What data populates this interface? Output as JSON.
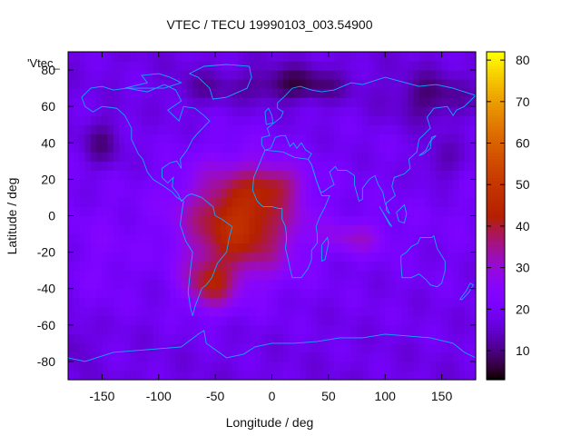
{
  "chart_data": {
    "type": "heatmap",
    "title": "VTEC / TECU 19990103_003.54900",
    "xlabel": "Longitude / deg",
    "ylabel": "Latitude / deg",
    "xlim": [
      -180,
      180
    ],
    "ylim": [
      -90,
      90
    ],
    "x_ticks": [
      -150,
      -100,
      -50,
      0,
      50,
      100,
      150
    ],
    "y_ticks": [
      -80,
      -60,
      -40,
      -20,
      0,
      20,
      40,
      60,
      80
    ],
    "x_tick_labels": [
      "-150",
      "-100",
      "-50",
      "0",
      "50",
      "100",
      "150"
    ],
    "y_tick_labels": [
      "-80",
      "-60",
      "-40",
      "-20",
      "0",
      "20",
      "40",
      "60",
      "80"
    ],
    "legend": "'Vtec_",
    "colorbar": {
      "min": 3,
      "max": 82,
      "ticks": [
        10,
        20,
        30,
        40,
        50,
        60,
        70,
        80
      ],
      "tick_labels": [
        "10",
        "20",
        "30",
        "40",
        "50",
        "60",
        "70",
        "80"
      ]
    },
    "grid_step_deg": 5,
    "features": {
      "background": 20,
      "blobs": [
        {
          "lon": -28,
          "lat": -3,
          "slon": 48,
          "slat": 30,
          "amp": 28
        },
        {
          "lon": -55,
          "lat": -38,
          "slon": 22,
          "slat": 14,
          "amp": 18
        },
        {
          "lon": 5,
          "lat": 18,
          "slon": 24,
          "slat": 10,
          "amp": 10
        },
        {
          "lon": 75,
          "lat": -12,
          "slon": 28,
          "slat": 9,
          "amp": 10
        },
        {
          "lon": -150,
          "lat": -25,
          "slon": 25,
          "slat": 25,
          "amp": 3
        }
      ],
      "lows": [
        {
          "lon": 20,
          "lat": 72,
          "slon": 45,
          "slat": 10,
          "amp": -11
        },
        {
          "lon": 140,
          "lat": 65,
          "slon": 35,
          "slat": 14,
          "amp": -9
        },
        {
          "lon": -150,
          "lat": 40,
          "slon": 18,
          "slat": 14,
          "amp": -8
        },
        {
          "lon": 150,
          "lat": 30,
          "slon": 20,
          "slat": 12,
          "amp": -6
        },
        {
          "lon": -60,
          "lat": 70,
          "slon": 30,
          "slat": 10,
          "amp": -5
        },
        {
          "lon": -175,
          "lat": -70,
          "slon": 15,
          "slat": 10,
          "amp": -5
        }
      ]
    },
    "coastlines": [
      [
        [
          -168,
          65
        ],
        [
          -160,
          70
        ],
        [
          -150,
          71
        ],
        [
          -140,
          69
        ],
        [
          -128,
          70
        ],
        [
          -110,
          68
        ],
        [
          -95,
          72
        ],
        [
          -85,
          69
        ],
        [
          -80,
          63
        ],
        [
          -92,
          58
        ],
        [
          -82,
          52
        ],
        [
          -78,
          60
        ],
        [
          -68,
          59
        ],
        [
          -60,
          55
        ],
        [
          -55,
          52
        ],
        [
          -66,
          45
        ],
        [
          -70,
          42
        ],
        [
          -75,
          36
        ],
        [
          -81,
          31
        ],
        [
          -80,
          26
        ],
        [
          -82,
          28
        ],
        [
          -84,
          30
        ],
        [
          -90,
          29
        ],
        [
          -97,
          26
        ],
        [
          -97,
          21
        ],
        [
          -92,
          18
        ],
        [
          -87,
          21
        ],
        [
          -88,
          16
        ],
        [
          -83,
          12
        ],
        [
          -80,
          8
        ],
        [
          -78,
          9
        ],
        [
          -75,
          11
        ],
        [
          -71,
          12
        ],
        [
          -62,
          10
        ],
        [
          -52,
          5
        ],
        [
          -50,
          0
        ],
        [
          -44,
          -2
        ],
        [
          -35,
          -6
        ],
        [
          -38,
          -13
        ],
        [
          -40,
          -20
        ],
        [
          -48,
          -26
        ],
        [
          -53,
          -34
        ],
        [
          -58,
          -38
        ],
        [
          -62,
          -40
        ],
        [
          -65,
          -45
        ],
        [
          -68,
          -50
        ],
        [
          -70,
          -55
        ],
        [
          -72,
          -50
        ],
        [
          -74,
          -42
        ],
        [
          -72,
          -30
        ],
        [
          -70,
          -20
        ],
        [
          -76,
          -14
        ],
        [
          -81,
          -5
        ],
        [
          -80,
          0
        ],
        [
          -78,
          8
        ],
        [
          -84,
          10
        ],
        [
          -88,
          13
        ],
        [
          -95,
          16
        ],
        [
          -105,
          20
        ],
        [
          -110,
          24
        ],
        [
          -114,
          31
        ],
        [
          -118,
          34
        ],
        [
          -124,
          42
        ],
        [
          -124,
          48
        ],
        [
          -130,
          55
        ],
        [
          -137,
          59
        ],
        [
          -150,
          60
        ],
        [
          -158,
          57
        ],
        [
          -165,
          60
        ],
        [
          -168,
          65
        ]
      ],
      [
        [
          -6,
          36
        ],
        [
          -9,
          39
        ],
        [
          -9,
          43
        ],
        [
          -2,
          44
        ],
        [
          -4,
          48
        ],
        [
          2,
          51
        ],
        [
          8,
          54
        ],
        [
          10,
          57
        ],
        [
          5,
          59
        ],
        [
          5,
          62
        ],
        [
          12,
          66
        ],
        [
          18,
          70
        ],
        [
          25,
          71
        ],
        [
          35,
          69
        ],
        [
          44,
          68
        ],
        [
          55,
          69
        ],
        [
          70,
          73
        ],
        [
          80,
          72
        ],
        [
          100,
          76
        ],
        [
          112,
          74
        ],
        [
          130,
          71
        ],
        [
          145,
          72
        ],
        [
          160,
          70
        ],
        [
          170,
          68
        ],
        [
          180,
          66
        ],
        [
          170,
          60
        ],
        [
          163,
          58
        ],
        [
          160,
          55
        ],
        [
          155,
          60
        ],
        [
          143,
          59
        ],
        [
          137,
          54
        ],
        [
          140,
          48
        ],
        [
          130,
          42
        ],
        [
          128,
          35
        ],
        [
          121,
          31
        ],
        [
          122,
          26
        ],
        [
          117,
          23
        ],
        [
          108,
          21
        ],
        [
          106,
          16
        ],
        [
          109,
          11
        ],
        [
          105,
          9
        ],
        [
          101,
          7
        ],
        [
          101,
          3
        ],
        [
          104,
          1
        ],
        [
          100,
          7
        ],
        [
          98,
          13
        ],
        [
          94,
          17
        ],
        [
          91,
          22
        ],
        [
          86,
          20
        ],
        [
          80,
          15
        ],
        [
          80,
          9
        ],
        [
          77,
          8
        ],
        [
          73,
          17
        ],
        [
          73,
          22
        ],
        [
          66,
          25
        ],
        [
          58,
          25
        ],
        [
          56,
          27
        ],
        [
          51,
          24
        ],
        [
          55,
          17
        ],
        [
          52,
          16
        ],
        [
          45,
          13
        ],
        [
          43,
          13
        ],
        [
          39,
          20
        ],
        [
          35,
          28
        ],
        [
          32,
          31
        ],
        [
          35,
          34
        ],
        [
          30,
          36
        ],
        [
          26,
          40
        ],
        [
          22,
          37
        ],
        [
          19,
          40
        ],
        [
          16,
          38
        ],
        [
          12,
          44
        ],
        [
          8,
          44
        ],
        [
          3,
          43
        ],
        [
          -1,
          37
        ],
        [
          -6,
          36
        ]
      ],
      [
        [
          -6,
          36
        ],
        [
          -10,
          30
        ],
        [
          -16,
          21
        ],
        [
          -17,
          14
        ],
        [
          -13,
          8
        ],
        [
          -8,
          5
        ],
        [
          0,
          5
        ],
        [
          6,
          4
        ],
        [
          9,
          4
        ],
        [
          9,
          -2
        ],
        [
          12,
          -6
        ],
        [
          13,
          -12
        ],
        [
          12,
          -18
        ],
        [
          14,
          -23
        ],
        [
          16,
          -29
        ],
        [
          18,
          -34
        ],
        [
          22,
          -34
        ],
        [
          26,
          -34
        ],
        [
          32,
          -29
        ],
        [
          35,
          -24
        ],
        [
          35,
          -19
        ],
        [
          40,
          -15
        ],
        [
          40,
          -10
        ],
        [
          39,
          -6
        ],
        [
          42,
          -1
        ],
        [
          47,
          5
        ],
        [
          51,
          11
        ],
        [
          44,
          11
        ],
        [
          43,
          13
        ],
        [
          39,
          20
        ],
        [
          35,
          28
        ],
        [
          32,
          31
        ],
        [
          20,
          32
        ],
        [
          10,
          35
        ],
        [
          -6,
          36
        ]
      ],
      [
        [
          44,
          -25
        ],
        [
          47,
          -24
        ],
        [
          50,
          -15
        ],
        [
          49,
          -12
        ],
        [
          44,
          -16
        ],
        [
          44,
          -25
        ]
      ],
      [
        [
          114,
          -22
        ],
        [
          114,
          -26
        ],
        [
          115,
          -34
        ],
        [
          123,
          -34
        ],
        [
          130,
          -32
        ],
        [
          136,
          -35
        ],
        [
          140,
          -38
        ],
        [
          146,
          -39
        ],
        [
          150,
          -37
        ],
        [
          153,
          -30
        ],
        [
          153,
          -25
        ],
        [
          146,
          -18
        ],
        [
          143,
          -11
        ],
        [
          141,
          -12
        ],
        [
          136,
          -12
        ],
        [
          131,
          -12
        ],
        [
          129,
          -15
        ],
        [
          123,
          -17
        ],
        [
          119,
          -20
        ],
        [
          114,
          -22
        ]
      ],
      [
        [
          -180,
          -78
        ],
        [
          -165,
          -80
        ],
        [
          -150,
          -77
        ],
        [
          -140,
          -75
        ],
        [
          -120,
          -74
        ],
        [
          -100,
          -73
        ],
        [
          -80,
          -72
        ],
        [
          -65,
          -65
        ],
        [
          -60,
          -63
        ],
        [
          -58,
          -70
        ],
        [
          -40,
          -78
        ],
        [
          -25,
          -76
        ],
        [
          -15,
          -72
        ],
        [
          0,
          -70
        ],
        [
          20,
          -70
        ],
        [
          40,
          -69
        ],
        [
          60,
          -67
        ],
        [
          80,
          -67
        ],
        [
          100,
          -65
        ],
        [
          120,
          -66
        ],
        [
          140,
          -67
        ],
        [
          160,
          -70
        ],
        [
          170,
          -75
        ],
        [
          180,
          -78
        ]
      ],
      [
        [
          -73,
          78
        ],
        [
          -60,
          82
        ],
        [
          -40,
          83
        ],
        [
          -20,
          82
        ],
        [
          -18,
          76
        ],
        [
          -22,
          70
        ],
        [
          -40,
          65
        ],
        [
          -52,
          64
        ],
        [
          -55,
          70
        ],
        [
          -65,
          76
        ],
        [
          -73,
          78
        ]
      ],
      [
        [
          -5,
          50
        ],
        [
          1,
          51
        ],
        [
          0,
          55
        ],
        [
          -3,
          59
        ],
        [
          -6,
          57
        ],
        [
          -5,
          50
        ]
      ],
      [
        [
          130,
          33
        ],
        [
          134,
          34
        ],
        [
          140,
          37
        ],
        [
          141,
          43
        ],
        [
          145,
          44
        ],
        [
          140,
          41
        ],
        [
          136,
          36
        ],
        [
          130,
          33
        ]
      ],
      [
        [
          166,
          -46
        ],
        [
          172,
          -41
        ],
        [
          175,
          -37
        ],
        [
          178,
          -38
        ],
        [
          174,
          -42
        ],
        [
          168,
          -46
        ],
        [
          166,
          -46
        ]
      ],
      [
        [
          95,
          5
        ],
        [
          100,
          0
        ],
        [
          106,
          -6
        ],
        [
          104,
          -5
        ],
        [
          98,
          2
        ],
        [
          95,
          5
        ]
      ],
      [
        [
          110,
          2
        ],
        [
          112,
          -3
        ],
        [
          117,
          -4
        ],
        [
          119,
          1
        ],
        [
          117,
          6
        ],
        [
          112,
          3
        ],
        [
          110,
          2
        ]
      ],
      [
        [
          -130,
          70
        ],
        [
          -110,
          73
        ],
        0,
        [
          -115,
          77
        ],
        [
          -100,
          78
        ],
        [
          -90,
          76
        ],
        [
          -80,
          73
        ],
        [
          -95,
          70
        ],
        [
          -110,
          70
        ],
        [
          -130,
          70
        ]
      ]
    ]
  }
}
